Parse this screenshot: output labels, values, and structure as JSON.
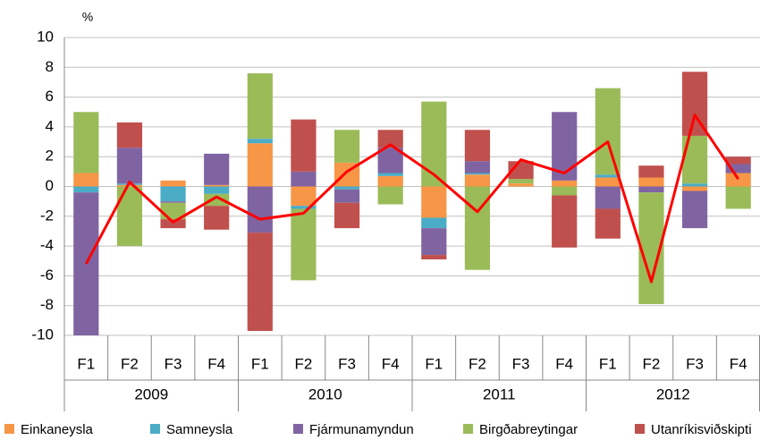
{
  "chart_data": {
    "type": "stacked-bar-line",
    "unit_label": "%",
    "categories": [
      "F1",
      "F2",
      "F3",
      "F4",
      "F1",
      "F2",
      "F3",
      "F4",
      "F1",
      "F2",
      "F3",
      "F4",
      "F1",
      "F2",
      "F3",
      "F4"
    ],
    "groups": [
      "2009",
      "2010",
      "2011",
      "2012"
    ],
    "series": [
      {
        "name": "Einkaneysla",
        "color": "#f79646",
        "values": [
          0.9,
          0.1,
          0.4,
          0.1,
          2.9,
          -1.3,
          1.6,
          0.7,
          -2.1,
          0.8,
          0.2,
          0.4,
          0.6,
          0.6,
          -0.3,
          0.9
        ]
      },
      {
        "name": "Samneysla",
        "color": "#4bacc6",
        "values": [
          -0.4,
          0.1,
          -1.0,
          -0.5,
          0.3,
          -0.2,
          -0.2,
          0.2,
          -0.7,
          0.1,
          0,
          0,
          0.2,
          0,
          0.2,
          0
        ]
      },
      {
        "name": "Fjármunamyndun",
        "color": "#8064a2",
        "values": [
          -9.6,
          2.4,
          -0.1,
          2.1,
          -3.1,
          1.0,
          -0.9,
          1.7,
          -1.8,
          0.8,
          0,
          4.6,
          -1.5,
          -0.4,
          -2.5,
          0.6
        ]
      },
      {
        "name": "Birgðabreytingar",
        "color": "#9bbb59",
        "values": [
          4.1,
          -4.0,
          -1.1,
          -0.8,
          4.4,
          -4.8,
          2.2,
          -1.2,
          5.7,
          -5.6,
          0.3,
          -0.6,
          5.8,
          -7.5,
          3.2,
          -1.5
        ]
      },
      {
        "name": "Utanríkisviðskipti",
        "color": "#c0504d",
        "values": [
          0,
          1.7,
          -0.6,
          -1.6,
          -6.6,
          3.5,
          -1.7,
          1.2,
          -0.3,
          2.1,
          1.2,
          -3.5,
          -2.0,
          0.8,
          4.3,
          0.5
        ]
      }
    ],
    "line": {
      "color": "#ff0000",
      "values": [
        -5.2,
        0.3,
        -2.4,
        -0.7,
        -2.2,
        -1.8,
        1.0,
        2.8,
        0.8,
        -1.7,
        1.8,
        0.9,
        3.0,
        -6.4,
        4.8,
        0.5
      ]
    },
    "ylim": [
      -10,
      10
    ],
    "yticks": [
      -10,
      -8,
      -6,
      -4,
      -2,
      0,
      2,
      4,
      6,
      8,
      10
    ],
    "grid": true
  }
}
